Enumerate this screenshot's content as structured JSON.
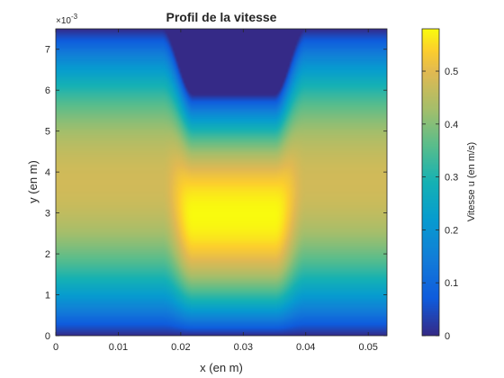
{
  "chart_data": {
    "type": "heatmap",
    "title": "Profil de la vitesse",
    "xlabel": "x (en m)",
    "ylabel": "y (en m)",
    "y_exponent_label": "×10",
    "y_exponent_power": "-3",
    "xlim": [
      0,
      0.053
    ],
    "ylim": [
      0,
      0.0075
    ],
    "x_ticks": [
      0,
      0.01,
      0.02,
      0.03,
      0.04,
      0.05
    ],
    "x_tick_labels": [
      "0",
      "0.01",
      "0.02",
      "0.03",
      "0.04",
      "0.05"
    ],
    "y_ticks": [
      0,
      0.001,
      0.002,
      0.003,
      0.004,
      0.005,
      0.006,
      0.007
    ],
    "y_tick_labels": [
      "0",
      "1",
      "2",
      "3",
      "4",
      "5",
      "6",
      "7"
    ],
    "colorbar": {
      "label": "Vitesse u (en m/s)",
      "range": [
        0,
        0.58
      ],
      "ticks": [
        0,
        0.1,
        0.2,
        0.3,
        0.4,
        0.5
      ],
      "tick_labels": [
        "0",
        "0.1",
        "0.2",
        "0.3",
        "0.4",
        "0.5"
      ],
      "colormap": "parula"
    },
    "field": {
      "channel_top": 0.0075,
      "obstacle_x": [
        0.0215,
        0.0355
      ],
      "obstacle_bottom": 0.0059,
      "max_velocity_outside": 0.48,
      "max_velocity_constriction": 0.58
    },
    "grid": false
  }
}
